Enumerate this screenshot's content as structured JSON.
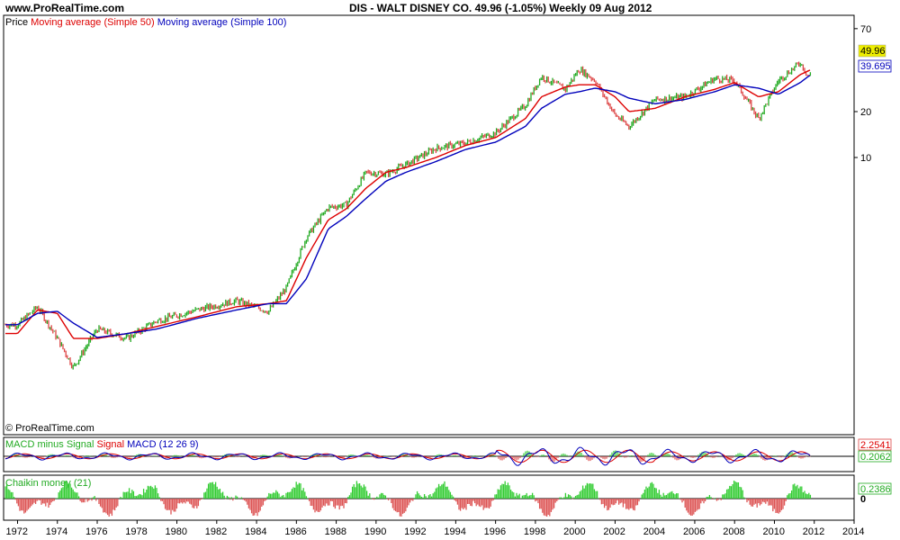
{
  "header": {
    "site": "www.ProRealTime.com",
    "headline": "DIS - WALT DISNEY CO.    49.96 (-1.05%)    Weekly  09 Aug 2012"
  },
  "price_panel": {
    "legend": {
      "price": "Price",
      "ma50": "Moving average (Simple 50)",
      "ma100": "Moving average (Simple 100)"
    },
    "copyright": "© ProRealTime.com",
    "last_price_tag": "49.96",
    "ma100_tag": "39.695"
  },
  "macd_panel": {
    "legend": {
      "hist": "MACD minus Signal",
      "signal": "Signal",
      "macd": "MACD (12 26 9)"
    },
    "value_tag_1": "2.2541",
    "value_tag_2": "0.2062"
  },
  "chaikin_panel": {
    "legend": "Chaikin money (21)",
    "value_tag": "0.2386",
    "zero_label": "0"
  },
  "colors": {
    "up": "#22aa22",
    "down": "#dd4444",
    "ma50": "#dd0000",
    "ma100": "#0000bb",
    "hist_up": "#33cc33",
    "hist_down": "#dd5555"
  },
  "chart_data": {
    "type": "line",
    "scale": "log",
    "y_ticks": [
      10,
      20,
      70
    ],
    "x_ticks": [
      "1972",
      "1974",
      "1976",
      "1978",
      "1980",
      "1982",
      "1984",
      "1986",
      "1988",
      "1990",
      "1992",
      "1994",
      "1996",
      "1998",
      "2000",
      "2002",
      "2004",
      "2006",
      "2008",
      "2010",
      "2012",
      "2014"
    ],
    "x": [
      1972.0,
      1973.0,
      1974.0,
      1974.8,
      1976.0,
      1977.5,
      1979.0,
      1981.0,
      1983.0,
      1984.6,
      1985.5,
      1986.5,
      1987.6,
      1988.5,
      1989.5,
      1990.5,
      1991.5,
      1993.0,
      1994.5,
      1996.0,
      1997.5,
      1998.3,
      1999.5,
      2000.2,
      2001.0,
      2002.0,
      2002.7,
      2004.0,
      2005.5,
      2007.0,
      2008.0,
      2009.2,
      2010.2,
      2011.3,
      2011.7,
      2012.6
    ],
    "series": [
      {
        "name": "Price",
        "values": [
          0.8,
          1.05,
          0.65,
          0.42,
          0.75,
          0.65,
          0.85,
          1.0,
          1.15,
          0.98,
          1.4,
          3.0,
          4.7,
          4.9,
          8.0,
          7.8,
          9.0,
          11.5,
          12.5,
          14.5,
          22.0,
          34.0,
          28.0,
          38.0,
          32.0,
          19.0,
          16.0,
          24.0,
          25.0,
          33.0,
          32.0,
          18.0,
          32.0,
          42.0,
          34.0,
          49.96
        ]
      },
      {
        "name": "Moving average (Simple 50)",
        "values": [
          0.7,
          1.0,
          0.95,
          0.65,
          0.65,
          0.7,
          0.78,
          0.9,
          1.05,
          1.1,
          1.15,
          2.2,
          3.9,
          4.6,
          6.3,
          8.0,
          8.6,
          10.0,
          12.0,
          13.5,
          18.0,
          25.0,
          29.0,
          30.0,
          30.0,
          25.0,
          20.0,
          21.0,
          25.0,
          28.0,
          31.0,
          25.0,
          27.0,
          35.0,
          37.0,
          42.0
        ]
      },
      {
        "name": "Moving average (Simple 100)",
        "values": [
          0.8,
          0.95,
          0.98,
          0.82,
          0.66,
          0.7,
          0.75,
          0.88,
          1.0,
          1.1,
          1.1,
          1.6,
          3.4,
          4.1,
          5.4,
          7.0,
          8.0,
          9.4,
          11.3,
          12.6,
          16.0,
          21.0,
          26.0,
          27.0,
          28.5,
          27.0,
          24.5,
          22.5,
          24.0,
          27.0,
          30.0,
          28.5,
          26.0,
          31.0,
          34.0,
          39.695
        ]
      }
    ]
  }
}
